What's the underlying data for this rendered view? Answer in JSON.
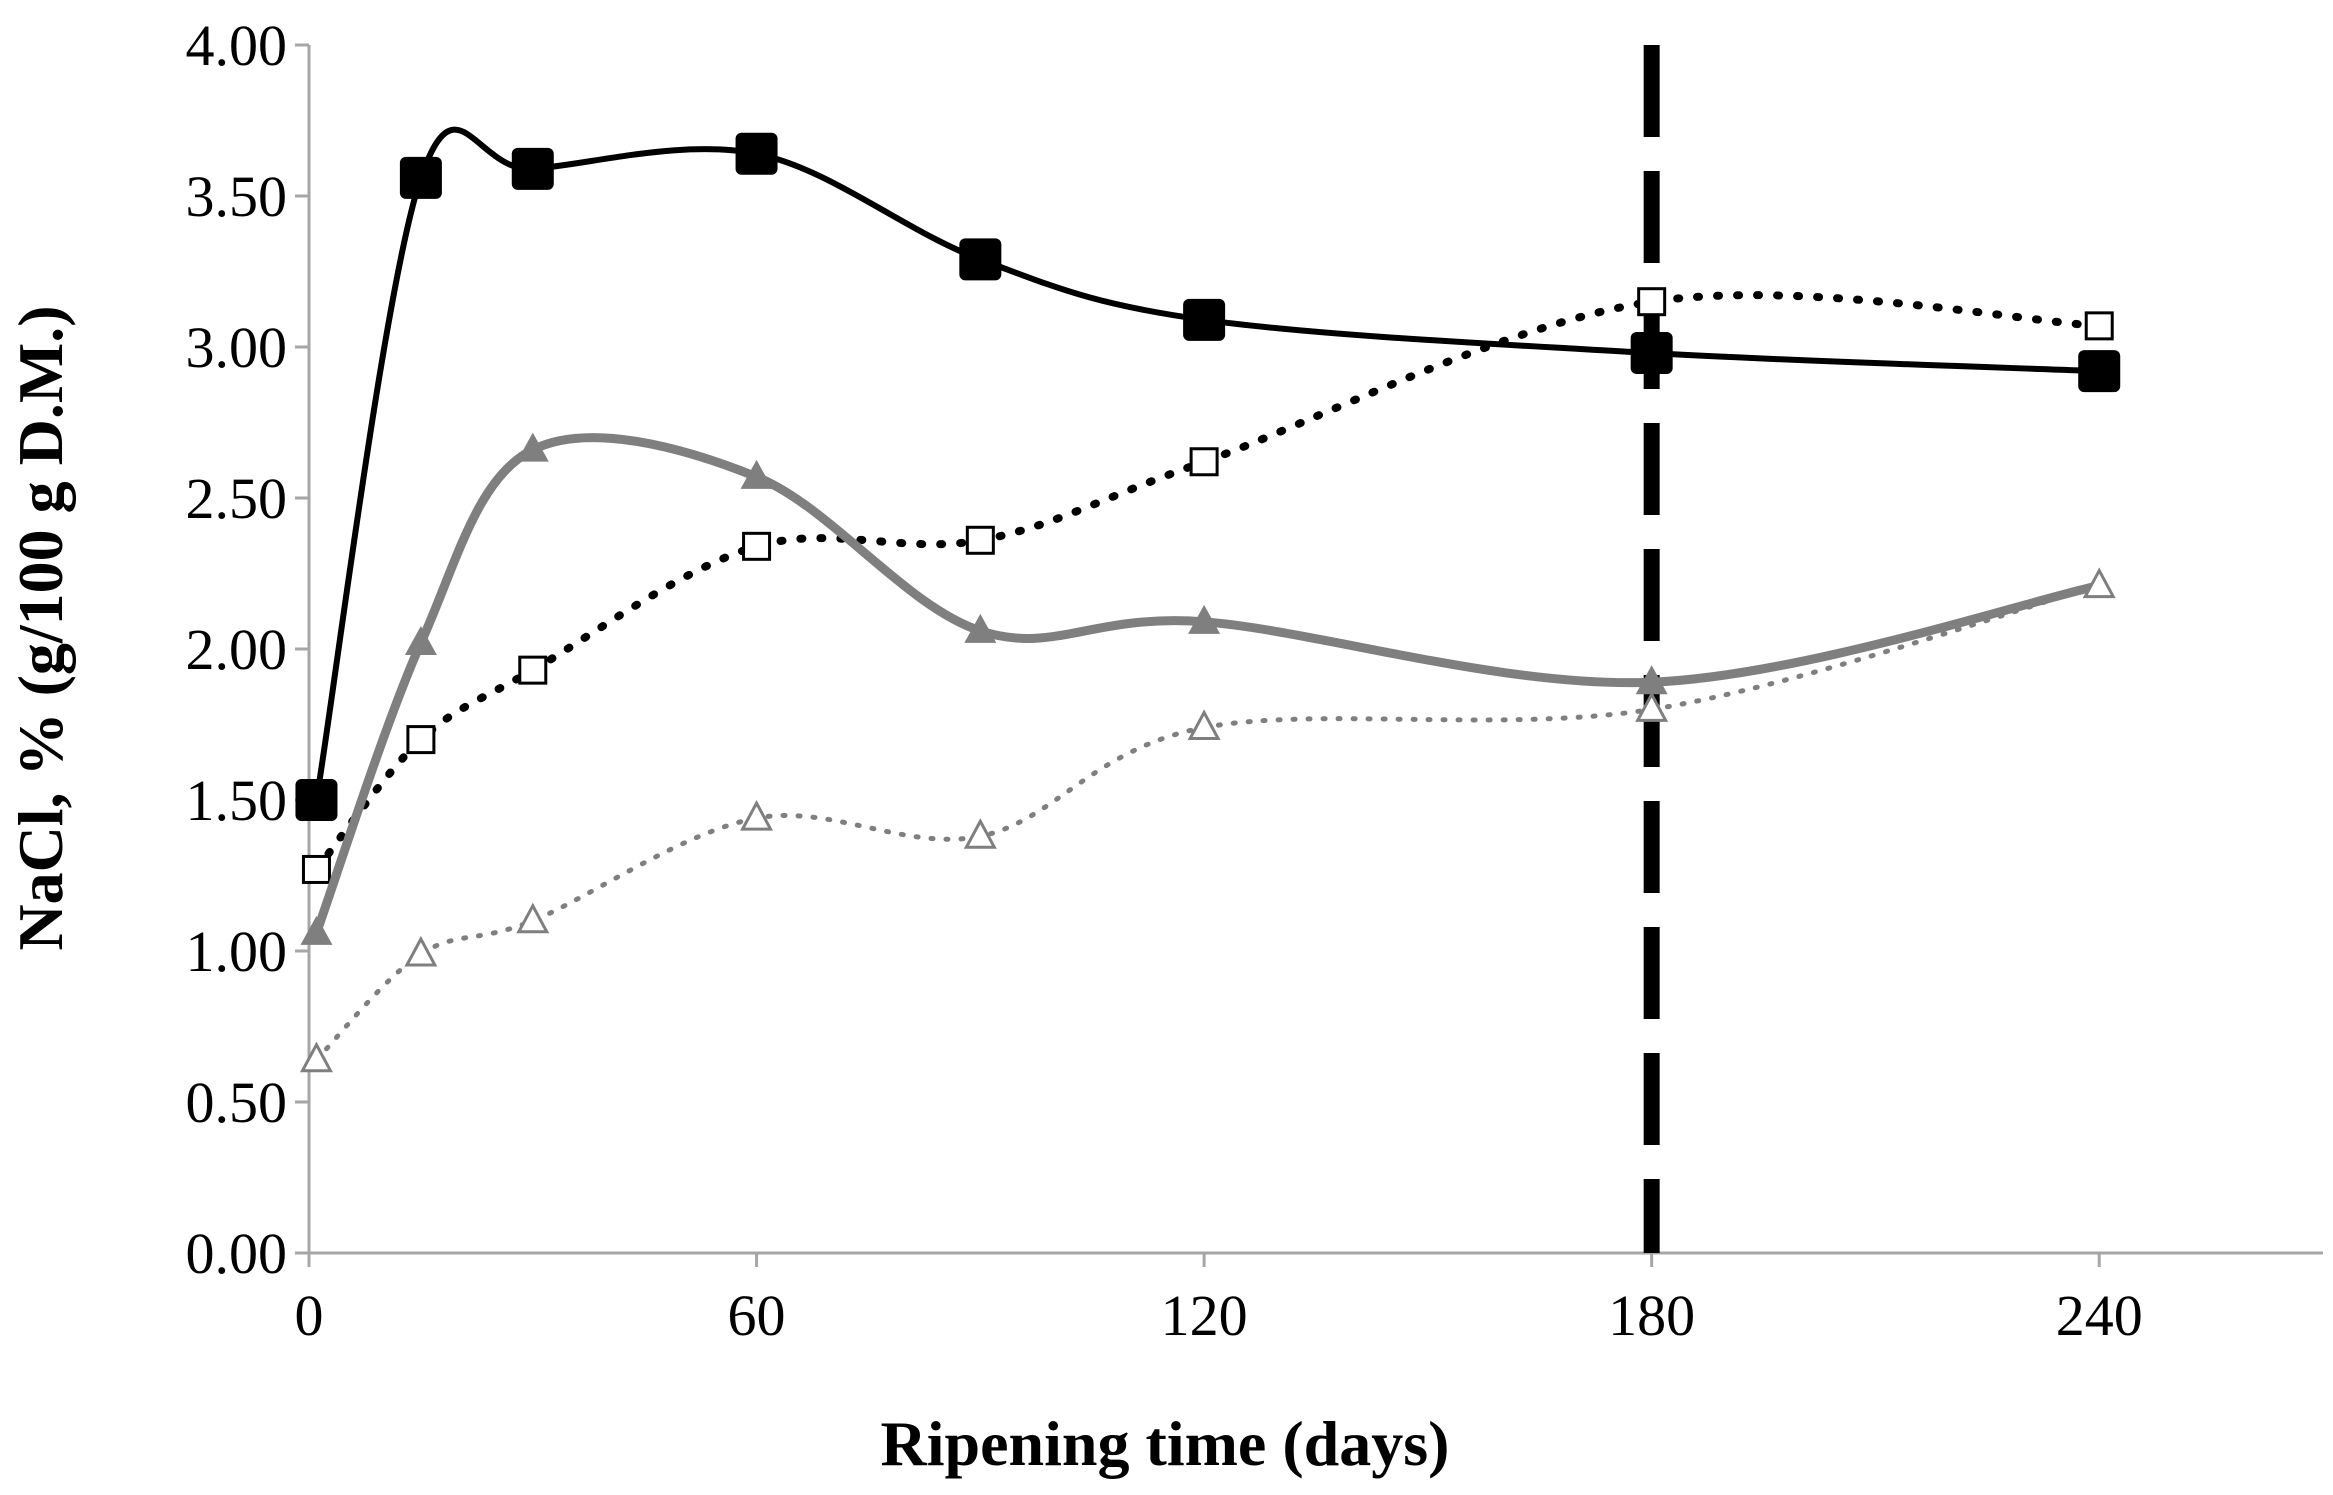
{
  "chart_data": {
    "type": "line",
    "title": "",
    "xlabel": "Ripening time (days)",
    "ylabel": "NaCl, % (g/100 g D.M.)",
    "xlim": [
      0,
      270
    ],
    "ylim": [
      0,
      4
    ],
    "xticks": [
      0,
      60,
      120,
      180,
      240
    ],
    "xtick_labels": [
      "0",
      "60",
      "120",
      "180",
      "240"
    ],
    "yticks": [
      0,
      0.5,
      1,
      1.5,
      2,
      2.5,
      3,
      3.5,
      4
    ],
    "ytick_labels": [
      "0.00",
      "0.50",
      "1.00",
      "1.50",
      "2.00",
      "2.50",
      "3.00",
      "3.50",
      "4.00"
    ],
    "grid": false,
    "reference_line": {
      "x": 180,
      "style": "dashed",
      "color": "#000000"
    },
    "x": [
      1,
      15,
      30,
      60,
      90,
      120,
      180,
      240
    ],
    "series": [
      {
        "name": "series-filled-square",
        "marker": "filled-square",
        "line": "solid",
        "color": "#000000",
        "values": [
          1.5,
          3.56,
          3.59,
          3.64,
          3.29,
          3.09,
          2.98,
          2.92
        ]
      },
      {
        "name": "series-open-square",
        "marker": "open-square",
        "line": "dotted",
        "color": "#000000",
        "values": [
          1.27,
          1.7,
          1.93,
          2.34,
          2.36,
          2.62,
          3.15,
          3.07
        ]
      },
      {
        "name": "series-filled-triangle",
        "marker": "filled-triangle",
        "line": "solid",
        "color": "#7f7f7f",
        "values": [
          1.06,
          2.02,
          2.66,
          2.57,
          2.06,
          2.09,
          1.89,
          2.21
        ]
      },
      {
        "name": "series-open-triangle",
        "marker": "open-triangle",
        "line": "dotted",
        "color": "#7f7f7f",
        "values": [
          0.64,
          0.99,
          1.1,
          1.44,
          1.38,
          1.74,
          1.8,
          2.21
        ]
      }
    ]
  }
}
